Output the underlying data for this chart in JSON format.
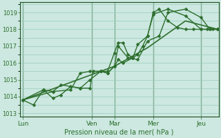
{
  "bg_color": "#cce8e0",
  "grid_color": "#99ccbb",
  "line_color": "#2d6e2d",
  "dark_line_color": "#1a4d1a",
  "xlabel": "Pression niveau de la mer( hPa )",
  "ylim": [
    1012.8,
    1019.6
  ],
  "xlim": [
    0,
    10.2
  ],
  "yticks": [
    1013,
    1014,
    1015,
    1016,
    1017,
    1018,
    1019
  ],
  "day_labels": [
    "Lun",
    "Ven",
    "Mar",
    "Mer",
    "Jeu"
  ],
  "day_positions": [
    0.15,
    3.7,
    4.85,
    6.85,
    9.3
  ],
  "vlines": [
    0.15,
    3.7,
    4.85,
    6.85,
    9.3
  ],
  "series": [
    {
      "x": [
        0.15,
        0.7,
        1.2,
        1.7,
        2.1,
        2.6,
        3.1,
        3.6,
        3.75,
        4.15,
        4.5,
        4.85,
        5.05,
        5.3,
        5.55,
        5.8,
        6.05,
        6.3,
        6.55,
        6.85,
        7.15,
        7.6,
        8.1,
        8.5,
        8.9,
        9.3,
        9.6,
        9.9,
        10.15
      ],
      "y": [
        1013.8,
        1013.5,
        1014.4,
        1013.9,
        1014.1,
        1014.6,
        1014.5,
        1014.5,
        1015.5,
        1015.5,
        1015.5,
        1016.6,
        1017.2,
        1017.2,
        1016.5,
        1016.3,
        1016.5,
        1017.0,
        1017.6,
        1019.0,
        1019.2,
        1018.5,
        1018.1,
        1018.0,
        1018.0,
        1018.0,
        1018.0,
        1018.0,
        1018.0
      ],
      "lw": 1.0,
      "marker": "D",
      "ms": 2.5
    },
    {
      "x": [
        0.15,
        1.2,
        1.7,
        2.1,
        3.1,
        3.6,
        4.15,
        4.5,
        4.85,
        5.05,
        5.3,
        5.8,
        6.05,
        6.55,
        6.85,
        7.6,
        8.5,
        9.3,
        9.75,
        10.15
      ],
      "y": [
        1013.8,
        1014.4,
        1014.3,
        1014.7,
        1014.5,
        1015.0,
        1015.5,
        1015.4,
        1015.8,
        1016.2,
        1016.0,
        1016.3,
        1017.1,
        1017.6,
        1018.9,
        1019.2,
        1018.8,
        1018.0,
        1018.0,
        1018.0
      ],
      "lw": 1.0,
      "marker": "D",
      "ms": 2.5
    },
    {
      "x": [
        0.15,
        1.7,
        2.6,
        3.1,
        3.6,
        4.15,
        4.5,
        4.85,
        5.05,
        5.55,
        6.05,
        6.55,
        7.15,
        7.6,
        8.5,
        9.3,
        9.75,
        10.15
      ],
      "y": [
        1013.8,
        1014.3,
        1014.4,
        1015.4,
        1015.5,
        1015.5,
        1015.4,
        1015.8,
        1017.0,
        1016.3,
        1016.2,
        1017.3,
        1017.6,
        1019.0,
        1019.2,
        1018.7,
        1018.0,
        1018.0
      ],
      "lw": 1.0,
      "marker": "D",
      "ms": 2.5
    },
    {
      "x": [
        0.15,
        4.85,
        6.55,
        8.5,
        10.15
      ],
      "y": [
        1013.8,
        1015.8,
        1016.9,
        1018.5,
        1018.0
      ],
      "lw": 1.2,
      "marker": null,
      "ms": 0
    }
  ]
}
